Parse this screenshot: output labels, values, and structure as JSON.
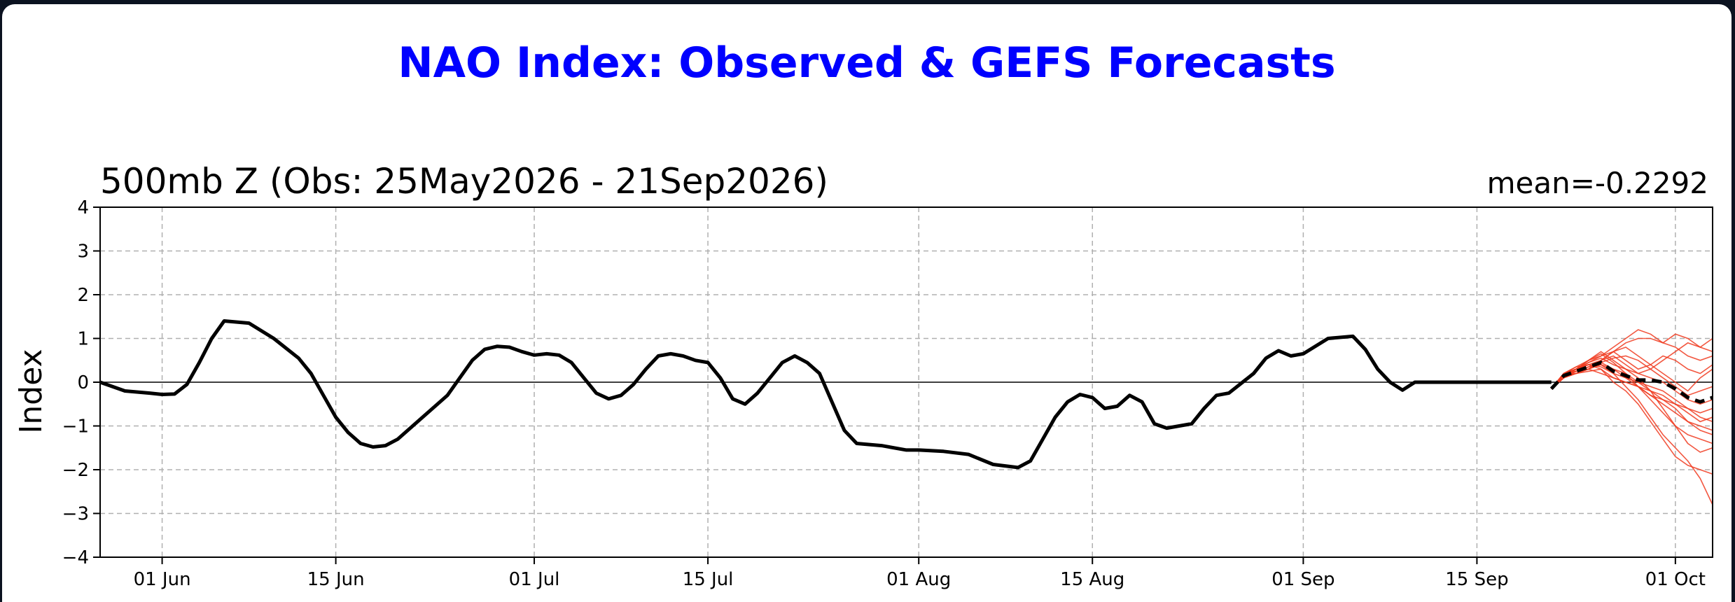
{
  "chart_data": {
    "type": "line",
    "title": "NAO Index: Observed & GEFS Forecasts",
    "subtitle": "500mb Z (Obs: 25May2026 - 21Sep2026)",
    "mean_label": "mean=-0.2292",
    "ylabel": "Index",
    "xlabel": "",
    "ylim": [
      -4,
      4
    ],
    "yticks": [
      -4,
      -3,
      -2,
      -1,
      0,
      1,
      2,
      3,
      4
    ],
    "ytick_labels": [
      "−4",
      "−3",
      "−2",
      "−1",
      "0",
      "1",
      "2",
      "3",
      "4"
    ],
    "xlim": [
      "2026-05-27",
      "2026-10-04"
    ],
    "xticks": [
      {
        "date": "2026-06-01",
        "label": "01 Jun"
      },
      {
        "date": "2026-06-15",
        "label": "15 Jun"
      },
      {
        "date": "2026-07-01",
        "label": "01 Jul"
      },
      {
        "date": "2026-07-15",
        "label": "15 Jul"
      },
      {
        "date": "2026-08-01",
        "label": "01 Aug"
      },
      {
        "date": "2026-08-15",
        "label": "15 Aug"
      },
      {
        "date": "2026-09-01",
        "label": "01 Sep"
      },
      {
        "date": "2026-09-15",
        "label": "15 Sep"
      },
      {
        "date": "2026-10-01",
        "label": "01 Oct"
      }
    ],
    "grid": true,
    "colors": {
      "title": "#0000ff",
      "observed": "#000000",
      "ensemble": "#f03a1f",
      "ensemble_mean": "#000000"
    },
    "observed": {
      "dates": [
        "2026-05-27",
        "2026-05-29",
        "2026-05-31",
        "2026-06-01",
        "2026-06-02",
        "2026-06-03",
        "2026-06-04",
        "2026-06-05",
        "2026-06-06",
        "2026-06-08",
        "2026-06-10",
        "2026-06-12",
        "2026-06-13",
        "2026-06-14",
        "2026-06-15",
        "2026-06-16",
        "2026-06-17",
        "2026-06-18",
        "2026-06-19",
        "2026-06-20",
        "2026-06-22",
        "2026-06-24",
        "2026-06-25",
        "2026-06-26",
        "2026-06-27",
        "2026-06-28",
        "2026-06-29",
        "2026-06-30",
        "2026-07-01",
        "2026-07-02",
        "2026-07-03",
        "2026-07-04",
        "2026-07-05",
        "2026-07-06",
        "2026-07-07",
        "2026-07-08",
        "2026-07-09",
        "2026-07-10",
        "2026-07-11",
        "2026-07-12",
        "2026-07-13",
        "2026-07-14",
        "2026-07-15",
        "2026-07-16",
        "2026-07-17",
        "2026-07-18",
        "2026-07-19",
        "2026-07-20",
        "2026-07-21",
        "2026-07-22",
        "2026-07-23",
        "2026-07-24",
        "2026-07-25",
        "2026-07-26",
        "2026-07-27",
        "2026-07-29",
        "2026-07-31",
        "2026-08-01",
        "2026-08-03",
        "2026-08-05",
        "2026-08-07",
        "2026-08-09",
        "2026-08-10",
        "2026-08-11",
        "2026-08-12",
        "2026-08-13",
        "2026-08-14",
        "2026-08-15",
        "2026-08-16",
        "2026-08-17",
        "2026-08-18",
        "2026-08-19",
        "2026-08-20",
        "2026-08-21",
        "2026-08-22",
        "2026-08-23",
        "2026-08-24",
        "2026-08-25",
        "2026-08-26",
        "2026-08-28",
        "2026-08-29",
        "2026-08-30",
        "2026-08-31",
        "2026-09-01",
        "2026-09-03",
        "2026-09-05",
        "2026-09-06",
        "2026-09-07",
        "2026-09-08",
        "2026-09-09",
        "2026-09-10",
        "2026-09-11",
        "2026-09-12",
        "2026-09-13",
        "2026-09-14",
        "2026-09-15",
        "2026-09-16",
        "2026-09-17",
        "2026-09-18",
        "2026-09-19",
        "2026-09-20",
        "2026-09-21"
      ],
      "values": [
        0.0,
        -0.2,
        -0.25,
        -0.28,
        -0.27,
        -0.05,
        0.45,
        1.0,
        1.4,
        1.35,
        1.0,
        0.55,
        0.2,
        -0.3,
        -0.8,
        -1.15,
        -1.4,
        -1.48,
        -1.45,
        -1.3,
        -0.8,
        -0.3,
        0.1,
        0.5,
        0.75,
        0.82,
        0.8,
        0.7,
        0.62,
        0.65,
        0.62,
        0.45,
        0.1,
        -0.25,
        -0.38,
        -0.3,
        -0.05,
        0.3,
        0.6,
        0.65,
        0.6,
        0.5,
        0.45,
        0.1,
        -0.38,
        -0.5,
        -0.25,
        0.1,
        0.45,
        0.6,
        0.45,
        0.2,
        -0.45,
        -1.1,
        -1.4,
        -1.45,
        -1.55,
        -1.55,
        -1.58,
        -1.65,
        -1.88,
        -1.95,
        -1.8,
        -1.3,
        -0.8,
        -0.45,
        -0.28,
        -0.35,
        -0.6,
        -0.55,
        -0.3,
        -0.45,
        -0.95,
        -1.05,
        -1.0,
        -0.95,
        -0.6,
        -0.3,
        -0.25,
        0.2,
        0.55,
        0.72,
        0.6,
        0.65,
        1.0,
        1.05,
        0.75,
        0.3,
        0.0,
        -0.18,
        0.0,
        0.0,
        0.0,
        0.0,
        0.0,
        0.0,
        0.0,
        0.0,
        0.0,
        0.0,
        0.0,
        0.0
      ]
    },
    "ensemble_mean": {
      "dates": [
        "2026-09-21",
        "2026-09-22",
        "2026-09-23",
        "2026-09-24",
        "2026-09-25",
        "2026-09-26",
        "2026-09-27",
        "2026-09-28",
        "2026-09-29",
        "2026-09-30",
        "2026-10-01",
        "2026-10-02",
        "2026-10-03",
        "2026-10-04"
      ],
      "values": [
        -0.15,
        0.15,
        0.25,
        0.35,
        0.45,
        0.25,
        0.15,
        0.05,
        0.05,
        0.0,
        -0.15,
        -0.35,
        -0.45,
        -0.35
      ]
    },
    "ensemble_members": [
      [
        -0.15,
        0.2,
        0.3,
        0.5,
        0.6,
        0.8,
        1.0,
        1.2,
        1.1,
        0.9,
        0.8,
        0.6,
        0.5,
        0.6
      ],
      [
        -0.15,
        0.1,
        0.25,
        0.3,
        0.5,
        0.7,
        0.9,
        1.0,
        1.0,
        0.9,
        1.1,
        1.0,
        0.8,
        0.7
      ],
      [
        -0.15,
        0.15,
        0.3,
        0.45,
        0.55,
        0.4,
        0.3,
        0.2,
        0.3,
        0.5,
        0.7,
        0.9,
        0.8,
        1.0
      ],
      [
        -0.15,
        0.2,
        0.35,
        0.4,
        0.3,
        0.1,
        0.0,
        -0.1,
        -0.3,
        -0.5,
        -0.7,
        -0.9,
        -1.1,
        -1.2
      ],
      [
        -0.15,
        0.1,
        0.2,
        0.3,
        0.4,
        0.2,
        -0.1,
        -0.4,
        -0.8,
        -1.2,
        -1.5,
        -1.8,
        -2.2,
        -2.8
      ],
      [
        -0.15,
        0.15,
        0.2,
        0.25,
        0.3,
        0.0,
        -0.2,
        -0.5,
        -0.9,
        -1.3,
        -1.7,
        -1.9,
        -2.0,
        -2.1
      ],
      [
        -0.15,
        0.2,
        0.3,
        0.5,
        0.7,
        0.5,
        0.3,
        0.1,
        -0.2,
        -0.6,
        -1.0,
        -1.4,
        -1.6,
        -1.5
      ],
      [
        -0.15,
        0.15,
        0.25,
        0.35,
        0.4,
        0.3,
        0.2,
        0.0,
        -0.2,
        -0.4,
        -0.6,
        -0.9,
        -1.0,
        -1.1
      ],
      [
        -0.15,
        0.1,
        0.3,
        0.4,
        0.5,
        0.6,
        0.4,
        0.2,
        0.1,
        0.0,
        -0.2,
        -0.4,
        -0.5,
        -0.4
      ],
      [
        -0.15,
        0.2,
        0.25,
        0.3,
        0.45,
        0.55,
        0.6,
        0.5,
        0.3,
        0.1,
        -0.1,
        -0.3,
        -0.2,
        -0.1
      ],
      [
        -0.15,
        0.1,
        0.2,
        0.3,
        0.2,
        0.1,
        0.0,
        -0.1,
        -0.2,
        -0.3,
        -0.5,
        -0.7,
        -0.9,
        -0.8
      ],
      [
        -0.15,
        0.15,
        0.3,
        0.45,
        0.6,
        0.7,
        0.5,
        0.3,
        0.4,
        0.6,
        0.5,
        0.3,
        0.2,
        0.4
      ],
      [
        -0.15,
        0.2,
        0.3,
        0.4,
        0.35,
        0.2,
        0.1,
        0.0,
        -0.1,
        -0.2,
        -0.4,
        -0.6,
        -0.8,
        -0.9
      ],
      [
        -0.15,
        0.1,
        0.25,
        0.35,
        0.45,
        0.3,
        0.1,
        -0.1,
        -0.3,
        -0.4,
        -0.5,
        -0.6,
        -0.7,
        -0.6
      ],
      [
        -0.15,
        0.15,
        0.2,
        0.3,
        0.5,
        0.7,
        0.8,
        0.6,
        0.4,
        0.2,
        0.0,
        -0.2,
        0.1,
        0.3
      ],
      [
        -0.15,
        0.2,
        0.35,
        0.5,
        0.65,
        0.45,
        0.2,
        -0.1,
        -0.4,
        -0.7,
        -1.0,
        -1.2,
        -1.3,
        -1.4
      ]
    ]
  }
}
